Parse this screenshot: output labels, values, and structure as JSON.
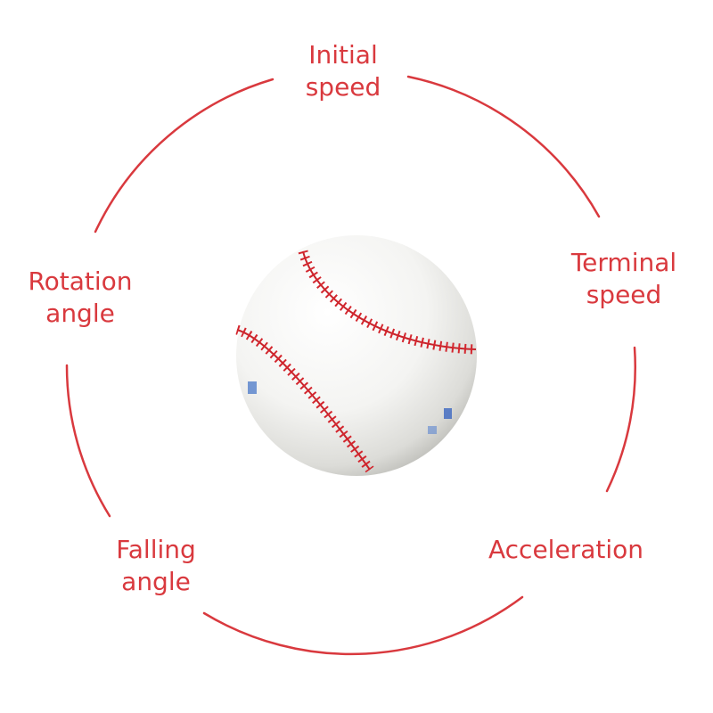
{
  "colors": {
    "accent": "#d9393e",
    "stitch": "#c8242b",
    "ball": "#f6f6f4"
  },
  "center_image": {
    "icon": "baseball-icon"
  },
  "cycle": {
    "items": [
      {
        "id": "initial-speed",
        "lines": [
          "Initial",
          "speed"
        ]
      },
      {
        "id": "terminal-speed",
        "lines": [
          "Terminal",
          "speed"
        ]
      },
      {
        "id": "acceleration",
        "lines": [
          "Acceleration"
        ]
      },
      {
        "id": "falling-angle",
        "lines": [
          "Falling",
          "angle"
        ]
      },
      {
        "id": "rotation-angle",
        "lines": [
          "Rotation",
          "angle"
        ]
      }
    ]
  }
}
